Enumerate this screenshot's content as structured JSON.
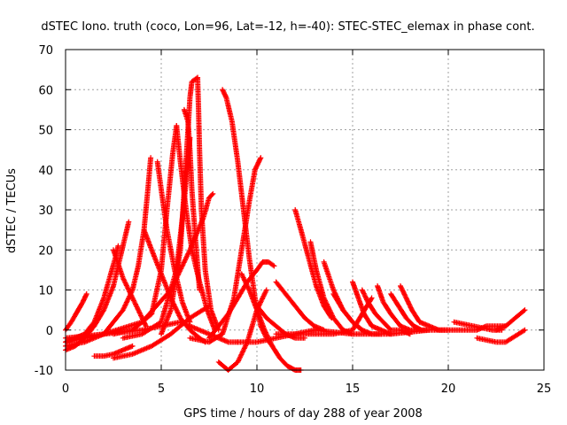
{
  "chart_data": {
    "type": "scatter",
    "title": "dSTEC Iono. truth (coco, Lon=96, Lat=-12, h=-40): STEC-STEC_elemax in phase cont.",
    "xlabel": "GPS time / hours of day 288 of year 2008",
    "ylabel": "dSTEC  / TECUs",
    "xlim": [
      0,
      25
    ],
    "ylim": [
      -10,
      70
    ],
    "x_ticks": [
      0,
      5,
      10,
      15,
      20,
      25
    ],
    "y_ticks": [
      -10,
      0,
      10,
      20,
      30,
      40,
      50,
      60,
      70
    ],
    "x_tick_labels": [
      "0",
      "5",
      "10",
      "15",
      "20",
      "25"
    ],
    "y_tick_labels": [
      "-10",
      "0",
      "10",
      "20",
      "30",
      "40",
      "50",
      "60",
      "70"
    ],
    "grid": true,
    "marker": "+",
    "color": "#ff0000",
    "series": [
      {
        "x": [
          0.0,
          0.3,
          0.6,
          0.9,
          1.1
        ],
        "y": [
          0,
          2,
          4.5,
          7,
          9
        ]
      },
      {
        "x": [
          0.0,
          0.5,
          1.0,
          1.5,
          2.0,
          2.3,
          2.6,
          2.75
        ],
        "y": [
          -3,
          -2,
          -1,
          2,
          8,
          13,
          18,
          21
        ]
      },
      {
        "x": [
          0.0,
          0.5,
          1.0,
          1.5,
          2.0,
          2.5,
          2.8,
          3.1,
          3.3
        ],
        "y": [
          -5,
          -4,
          -2,
          1,
          5,
          11,
          17,
          23,
          27
        ]
      },
      {
        "x": [
          0.0,
          1.0,
          2.0,
          2.5,
          3.0,
          3.5,
          3.8,
          4.1,
          4.3,
          4.45
        ],
        "y": [
          -4,
          -3,
          -1,
          2,
          5,
          10,
          16,
          25,
          35,
          43
        ]
      },
      {
        "x": [
          2.5,
          3.0,
          3.5,
          4.0,
          4.2
        ],
        "y": [
          20,
          13,
          8,
          3,
          1
        ]
      },
      {
        "x": [
          4.1,
          4.5,
          5.0,
          5.5,
          6.0,
          6.5,
          7.0,
          7.3
        ],
        "y": [
          25,
          20,
          14,
          8,
          3,
          0,
          -2,
          -3
        ]
      },
      {
        "x": [
          4.8,
          5.0,
          5.3,
          5.7,
          6.1,
          6.5
        ],
        "y": [
          42,
          35,
          25,
          15,
          7,
          2
        ]
      },
      {
        "x": [
          2.5,
          3.5,
          4.5,
          5.0,
          5.3,
          5.6,
          5.8
        ],
        "y": [
          -1,
          0,
          4,
          15,
          30,
          44,
          51
        ]
      },
      {
        "x": [
          5.8,
          6.0,
          6.3,
          6.6,
          7.0,
          7.4,
          7.8
        ],
        "y": [
          51,
          42,
          30,
          20,
          12,
          5,
          0
        ]
      },
      {
        "x": [
          3.0,
          4.0,
          5.0,
          5.8,
          6.2,
          6.5
        ],
        "y": [
          -2,
          -1,
          2,
          15,
          32,
          48
        ]
      },
      {
        "x": [
          6.2,
          6.4,
          6.5,
          6.6,
          6.8,
          7.0
        ],
        "y": [
          55,
          52,
          45,
          35,
          22,
          10
        ]
      },
      {
        "x": [
          5.0,
          5.5,
          6.0,
          6.2,
          6.4,
          6.5,
          6.6,
          6.9
        ],
        "y": [
          -1,
          5,
          20,
          35,
          50,
          58,
          62,
          63
        ]
      },
      {
        "x": [
          6.9,
          6.95,
          7.0,
          7.1,
          7.3,
          7.6,
          8.0
        ],
        "y": [
          63,
          55,
          45,
          30,
          15,
          5,
          0
        ]
      },
      {
        "x": [
          0.0,
          2.0,
          4.0,
          5.5,
          6.5,
          7.2,
          7.5,
          7.7
        ],
        "y": [
          -3,
          -1,
          2,
          10,
          20,
          28,
          33,
          34
        ]
      },
      {
        "x": [
          8.2,
          8.4,
          8.7,
          9.0,
          9.3,
          9.6,
          9.9,
          10.2,
          10.5,
          10.8
        ],
        "y": [
          60,
          58,
          52,
          42,
          30,
          18,
          8,
          1,
          -2,
          -4
        ]
      },
      {
        "x": [
          6.5,
          7.5,
          8.2,
          8.8,
          9.2,
          9.6,
          9.9,
          10.2
        ],
        "y": [
          -2,
          -3,
          -1,
          8,
          20,
          32,
          40,
          43
        ]
      },
      {
        "x": [
          7.5,
          8.0,
          8.5,
          9.0,
          9.5,
          10.0,
          10.3,
          10.6,
          10.9
        ],
        "y": [
          -2,
          1,
          4,
          8,
          12,
          15,
          17,
          17,
          16
        ]
      },
      {
        "x": [
          2.5,
          3.5,
          4.5,
          5.5,
          6.5,
          7.5
        ],
        "y": [
          -7,
          -6,
          -4,
          -1,
          3,
          6
        ]
      },
      {
        "x": [
          1.5,
          2.0,
          2.5,
          3.0,
          3.5
        ],
        "y": [
          -6.5,
          -6.5,
          -6,
          -5,
          -4
        ]
      },
      {
        "x": [
          8.0,
          8.5,
          9.0,
          9.5,
          10.0,
          10.5
        ],
        "y": [
          -8,
          -10,
          -8,
          -3,
          5,
          10
        ]
      },
      {
        "x": [
          9.2,
          9.6,
          10.0,
          10.4,
          10.8,
          11.2,
          11.6,
          12.0,
          12.3
        ],
        "y": [
          14,
          10,
          5,
          0,
          -4,
          -7,
          -9,
          -10,
          -10
        ]
      },
      {
        "x": [
          10.0,
          10.5,
          11.0,
          11.5,
          12.0,
          12.5
        ],
        "y": [
          6,
          3,
          1,
          -1,
          -2,
          -2
        ]
      },
      {
        "x": [
          11.0,
          11.5,
          12.0,
          12.5,
          13.0,
          13.5
        ],
        "y": [
          12,
          9,
          6,
          3,
          1,
          0
        ]
      },
      {
        "x": [
          12.0,
          12.3,
          12.7,
          13.1,
          13.5,
          13.9
        ],
        "y": [
          30,
          25,
          18,
          11,
          6,
          3
        ]
      },
      {
        "x": [
          12.8,
          13.1,
          13.5,
          14.0,
          14.5,
          15.0
        ],
        "y": [
          22,
          15,
          8,
          3,
          0,
          -1
        ]
      },
      {
        "x": [
          13.5,
          14.0,
          14.5,
          15.0,
          15.5
        ],
        "y": [
          17,
          10,
          5,
          2,
          0
        ]
      },
      {
        "x": [
          14.0,
          14.5,
          15.0,
          15.5,
          16.0,
          16.5
        ],
        "y": [
          9,
          5,
          2,
          0,
          -1,
          -1
        ]
      },
      {
        "x": [
          11.0,
          12.5,
          14.0,
          15.0,
          15.5,
          16.0
        ],
        "y": [
          -1,
          -1,
          -1,
          0,
          4,
          8
        ]
      },
      {
        "x": [
          15.0,
          15.3,
          15.6,
          16.0,
          16.5,
          17.0
        ],
        "y": [
          12,
          8,
          4,
          1,
          0,
          -1
        ]
      },
      {
        "x": [
          15.5,
          15.8,
          16.2,
          16.6,
          17.0,
          17.5,
          18.0
        ],
        "y": [
          10,
          7,
          4,
          2,
          0,
          0,
          -1
        ]
      },
      {
        "x": [
          16.3,
          16.6,
          17.0,
          17.5,
          18.0,
          18.5
        ],
        "y": [
          11,
          7,
          4,
          1,
          0,
          0
        ]
      },
      {
        "x": [
          17.0,
          17.4,
          17.8,
          18.2,
          18.6,
          19.0
        ],
        "y": [
          9,
          6,
          3,
          1,
          0,
          0
        ]
      },
      {
        "x": [
          17.5,
          17.8,
          18.1,
          18.5,
          19.0,
          19.5,
          20.0
        ],
        "y": [
          11,
          8,
          5,
          2,
          1,
          0,
          0
        ]
      },
      {
        "x": [
          13.0,
          15.0,
          17.0,
          19.0,
          20.5,
          21.5,
          22.0,
          22.5,
          23.0
        ],
        "y": [
          0,
          -1,
          -1,
          0,
          0,
          0,
          1,
          1,
          1
        ]
      },
      {
        "x": [
          20.3,
          20.8,
          21.3,
          21.8,
          22.3,
          22.8
        ],
        "y": [
          2,
          1.5,
          1,
          0.5,
          0,
          0
        ]
      },
      {
        "x": [
          21.5,
          22.0,
          22.5,
          23.0,
          23.5,
          24.0
        ],
        "y": [
          -2,
          -2.5,
          -3,
          -3,
          -1.5,
          0
        ]
      },
      {
        "x": [
          22.5,
          23.0,
          23.5,
          24.0
        ],
        "y": [
          0,
          1,
          3,
          5
        ]
      },
      {
        "x": [
          0.0,
          2.0,
          4.0,
          6.0,
          7.0,
          8.0,
          8.5,
          9.0
        ],
        "y": [
          -2,
          -1,
          0,
          2,
          0,
          -2,
          -3,
          -3
        ]
      },
      {
        "x": [
          9.0,
          10.0,
          11.0,
          12.0,
          13.0
        ],
        "y": [
          -3,
          -3,
          -2,
          -1,
          0
        ]
      }
    ]
  }
}
